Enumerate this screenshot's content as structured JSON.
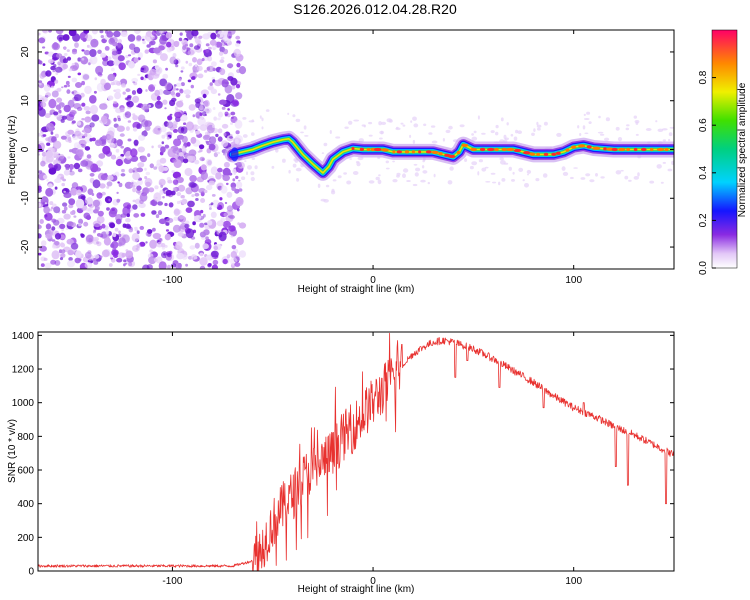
{
  "title": "S126.2026.012.04.28.R20",
  "colors": {
    "snr_line": "#e8312f",
    "spec_low": "#8a2be2",
    "axis": "#000000"
  },
  "chart_data": [
    {
      "type": "heatmap",
      "name": "spectrogram",
      "title": "S126.2026.012.04.28.R20",
      "xlabel": "Height of straight line (km)",
      "ylabel": "Frequency (Hz)",
      "xlim": [
        -167,
        150
      ],
      "ylim": [
        -24.5,
        24.5
      ],
      "xticks": [
        -100,
        0,
        100
      ],
      "yticks": [
        -20,
        -10,
        0,
        10,
        20
      ],
      "noise_region": [
        -167,
        -65
      ],
      "ridge": {
        "x": [
          -70,
          -65,
          -60,
          -55,
          -50,
          -45,
          -42,
          -40,
          -38,
          -35,
          -30,
          -25,
          -22,
          -20,
          -15,
          -10,
          -5,
          0,
          5,
          10,
          20,
          30,
          35,
          40,
          43,
          45,
          50,
          60,
          70,
          80,
          90,
          95,
          100,
          105,
          110,
          120,
          130,
          140,
          150
        ],
        "y": [
          -1.0,
          -0.5,
          0.0,
          0.8,
          1.5,
          2.0,
          2.2,
          1.5,
          0.5,
          -1.0,
          -3.0,
          -4.8,
          -3.5,
          -2.0,
          -0.5,
          0.2,
          0.0,
          0.0,
          0.0,
          -0.5,
          -0.5,
          -0.5,
          -1.0,
          -1.5,
          -0.5,
          1.0,
          0.0,
          0.0,
          0.0,
          -1.0,
          -1.0,
          -0.5,
          0.5,
          0.8,
          0.3,
          0.0,
          0.0,
          0.0,
          0.0
        ]
      },
      "colorbar": {
        "label": "Normalized spectral amplitude",
        "ticks": [
          "0.0",
          "0.2",
          "0.4",
          "0.6",
          "0.8"
        ],
        "range": [
          0,
          1
        ]
      }
    },
    {
      "type": "line",
      "name": "snr",
      "xlabel": "Height of straight line (km)",
      "ylabel": "SNR (10 * v/v)",
      "xlim": [
        -167,
        150
      ],
      "ylim": [
        0,
        1420
      ],
      "xticks": [
        -100,
        0,
        100
      ],
      "yticks": [
        0,
        200,
        400,
        600,
        800,
        1000,
        1200,
        1400
      ],
      "envelope": {
        "x": [
          -167,
          -70,
          -60,
          -55,
          -50,
          -45,
          -40,
          -35,
          -30,
          -25,
          -20,
          -15,
          -10,
          -5,
          0,
          5,
          10,
          15,
          20,
          25,
          30,
          35,
          40,
          50,
          60,
          70,
          80,
          90,
          100,
          110,
          120,
          130,
          140,
          150
        ],
        "y": [
          30,
          30,
          60,
          150,
          280,
          380,
          450,
          550,
          600,
          650,
          700,
          800,
          850,
          930,
          1000,
          1080,
          1150,
          1230,
          1290,
          1330,
          1360,
          1370,
          1360,
          1320,
          1260,
          1190,
          1120,
          1040,
          970,
          920,
          860,
          810,
          750,
          690
        ]
      },
      "dips": [
        {
          "x": 41,
          "y": 1150
        },
        {
          "x": 47,
          "y": 1250
        },
        {
          "x": 63,
          "y": 1090
        },
        {
          "x": 85,
          "y": 970
        },
        {
          "x": 105,
          "y": 1000
        },
        {
          "x": 121,
          "y": 620
        },
        {
          "x": 127,
          "y": 510
        },
        {
          "x": 146,
          "y": 400
        }
      ]
    }
  ]
}
